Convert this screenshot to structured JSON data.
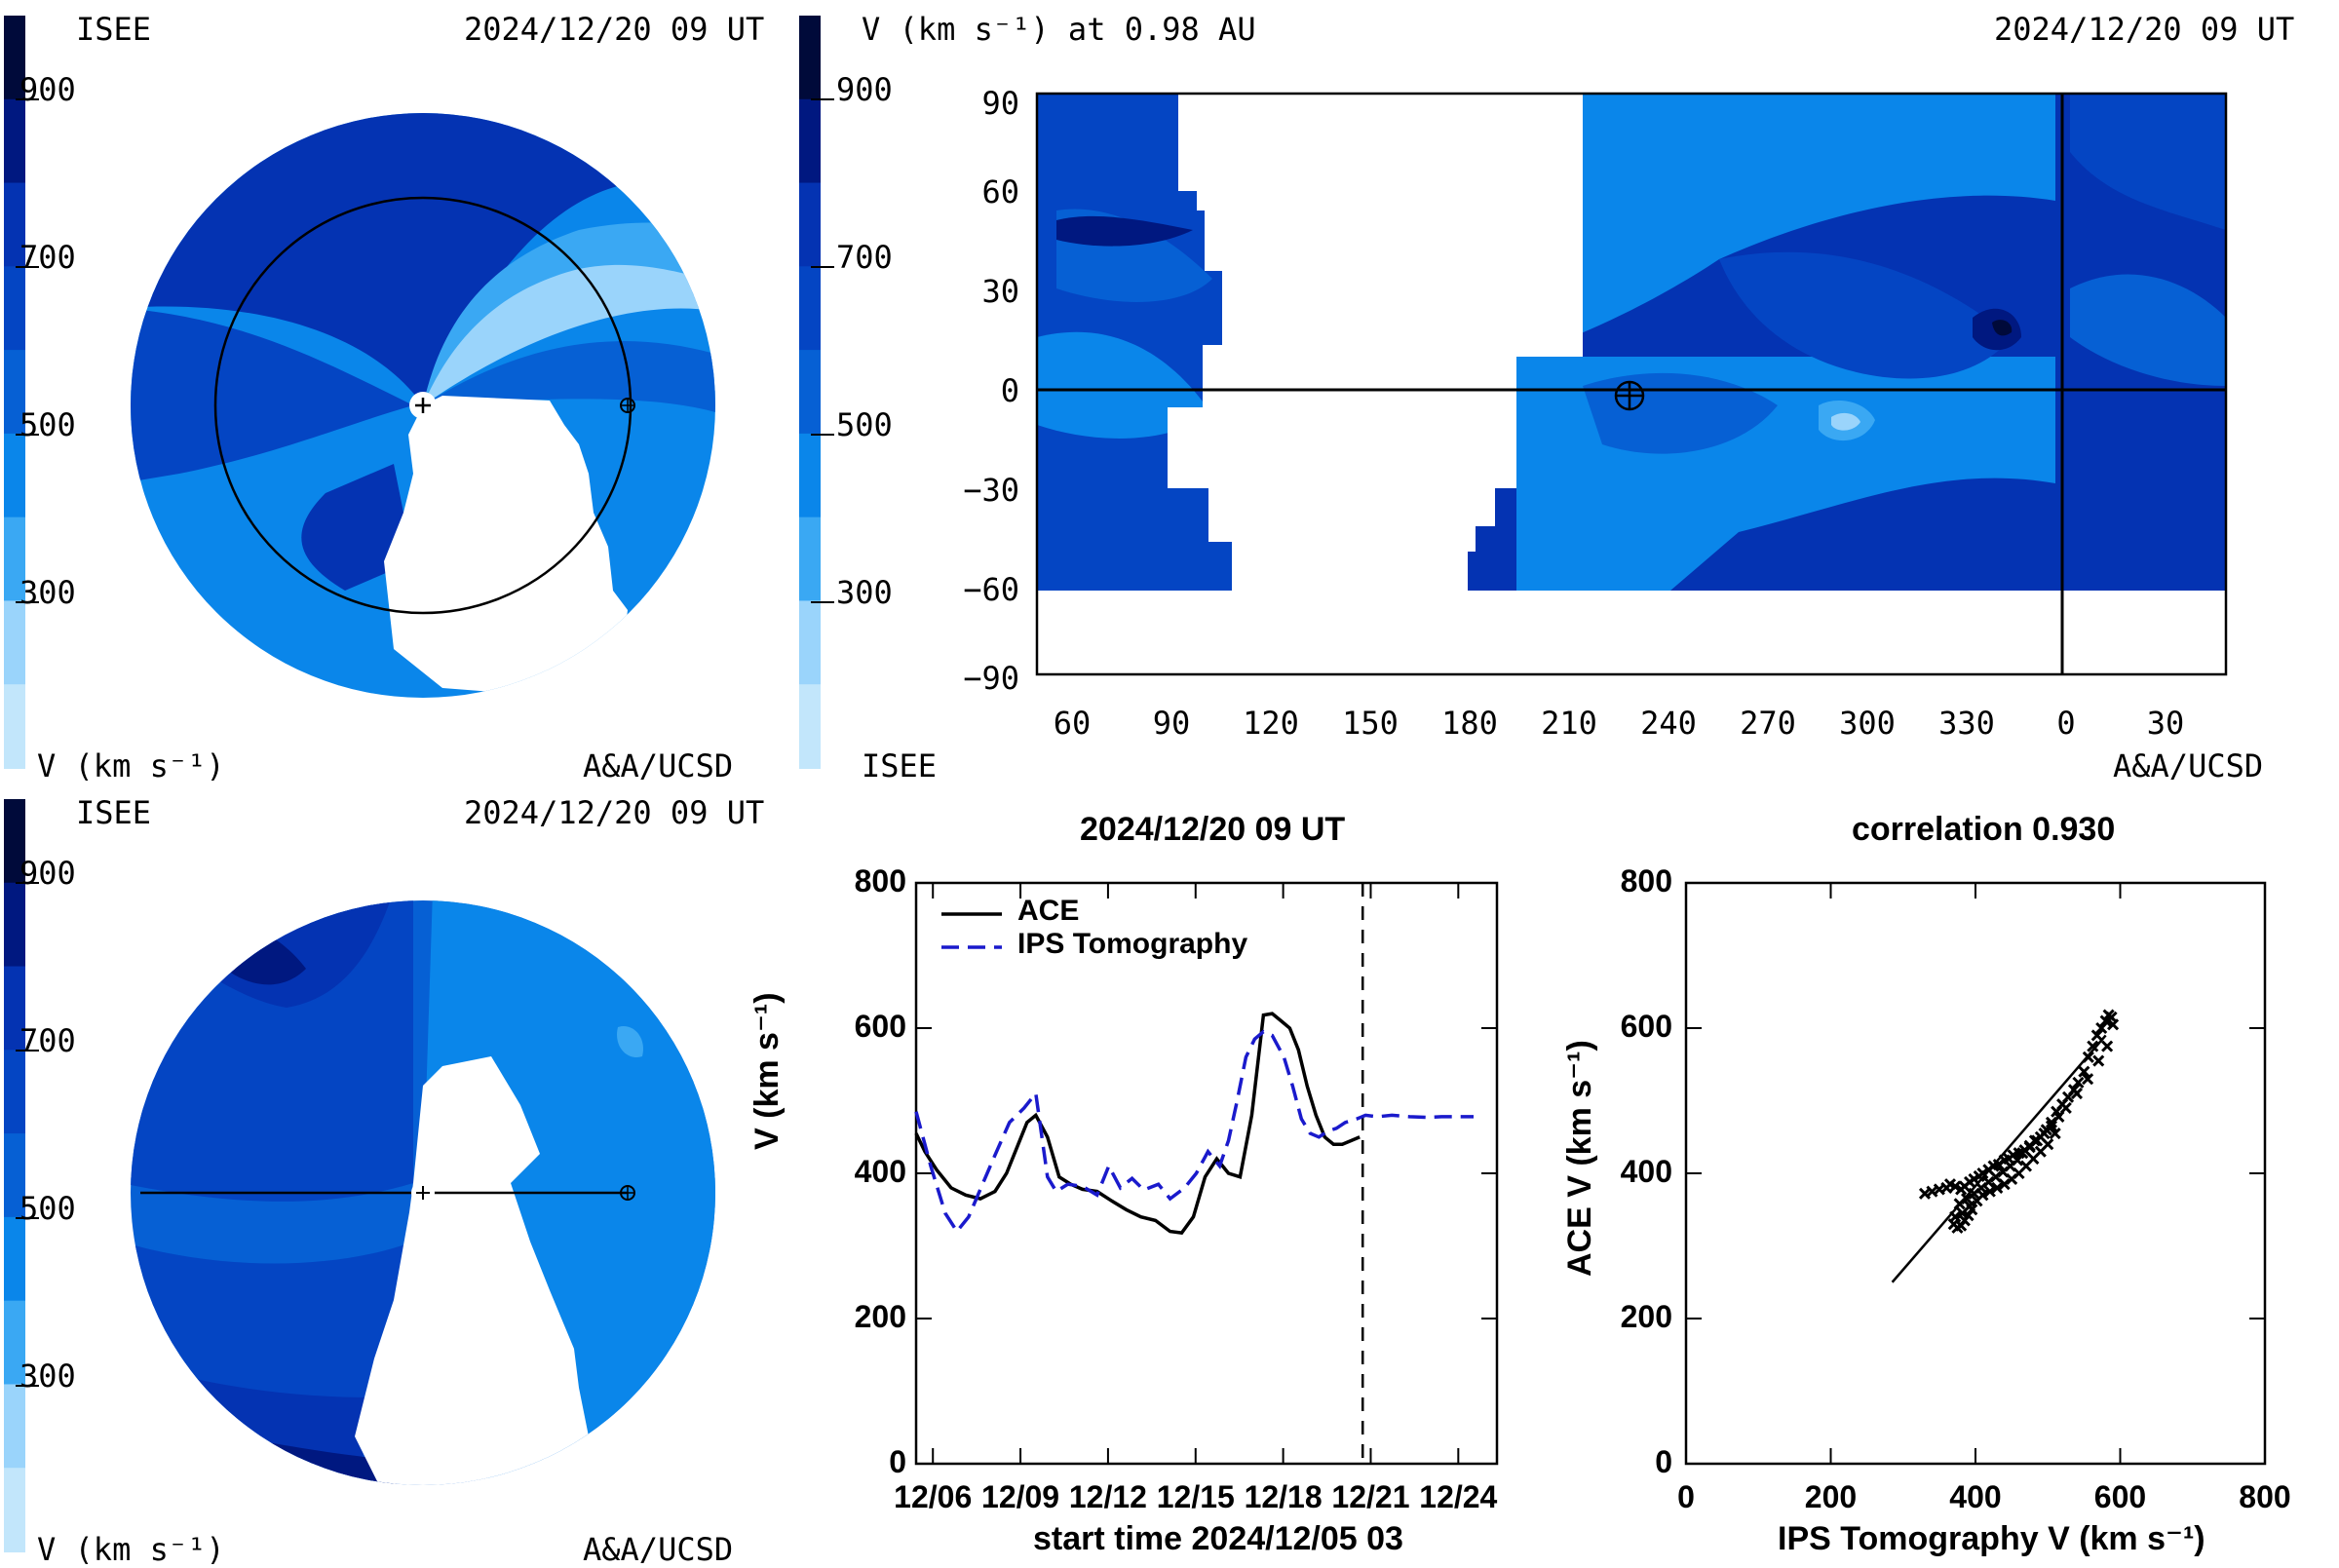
{
  "colors": {
    "v100": "#c2e6fb",
    "v200": "#9ad4fb",
    "v300": "#3aa8f3",
    "v400": "#0a86ea",
    "v500": "#0660d4",
    "v600": "#0445c3",
    "v700": "#0433b2",
    "v800": "#001880",
    "v900": "#000a3a"
  },
  "colorbar": {
    "ticks": [
      "900",
      "700",
      "500",
      "300"
    ]
  },
  "panel_tl": {
    "left_label": "ISEE",
    "timestamp": "2024/12/20 09 UT",
    "bottom_left": "V (km s⁻¹)",
    "bottom_right": "A&A/UCSD"
  },
  "panel_tr": {
    "title": "V (km s⁻¹) at 0.98 AU",
    "timestamp": "2024/12/20 09 UT",
    "bottom_left": "ISEE",
    "bottom_right": "A&A/UCSD",
    "y_ticks": [
      "90",
      "60",
      "30",
      "0",
      "−30",
      "−60",
      "−90"
    ],
    "x_ticks": [
      "60",
      "90",
      "120",
      "150",
      "180",
      "210",
      "240",
      "270",
      "300",
      "330",
      "0",
      "30"
    ]
  },
  "panel_bl": {
    "left_label": "ISEE",
    "timestamp": "2024/12/20 09 UT",
    "bottom_left": "V (km s⁻¹)",
    "bottom_right": "A&A/UCSD"
  },
  "timeseries": {
    "title": "2024/12/20 09 UT",
    "xlabel": "start time 2024/12/05 03",
    "ylabel": "V (km s⁻¹)",
    "y_ticks": [
      "800",
      "600",
      "400",
      "200",
      "0"
    ],
    "x_ticks": [
      "12/06",
      "12/09",
      "12/12",
      "12/15",
      "12/18",
      "12/21",
      "12/24"
    ],
    "legend": [
      "ACE",
      "IPS Tomography"
    ]
  },
  "scatter": {
    "title": "correlation 0.930",
    "xlabel": "IPS Tomography V (km s⁻¹)",
    "ylabel": "ACE V (km s⁻¹)",
    "y_ticks": [
      "800",
      "600",
      "400",
      "200",
      "0"
    ],
    "x_ticks": [
      "0",
      "200",
      "400",
      "600",
      "800"
    ]
  },
  "chart_data": [
    {
      "type": "line",
      "title": "2024/12/20 09 UT",
      "xlabel": "start time 2024/12/05 03",
      "ylabel": "V (km s⁻¹)",
      "x_unit": "days since start",
      "xlim": [
        0.3,
        20.2
      ],
      "ylim": [
        0,
        800
      ],
      "marker_day": 15.6,
      "legend_position": "top-left",
      "series": [
        {
          "name": "ACE",
          "style": "solid",
          "color": "#000000",
          "x": [
            0.3,
            0.6,
            1.0,
            1.5,
            2.0,
            2.5,
            3.0,
            3.4,
            3.8,
            4.1,
            4.4,
            4.8,
            5.2,
            5.6,
            6.0,
            6.5,
            7.0,
            7.5,
            8.0,
            8.5,
            9.0,
            9.4,
            9.8,
            10.2,
            10.6,
            11.0,
            11.4,
            11.8,
            12.2,
            12.5,
            12.8,
            13.1,
            13.4,
            13.7,
            14.0,
            14.3,
            14.6,
            14.9,
            15.2,
            15.5
          ],
          "y": [
            455,
            430,
            405,
            380,
            370,
            365,
            375,
            400,
            440,
            470,
            480,
            450,
            395,
            385,
            378,
            375,
            362,
            350,
            340,
            335,
            320,
            318,
            340,
            395,
            420,
            400,
            395,
            480,
            618,
            620,
            610,
            600,
            570,
            520,
            480,
            450,
            440,
            440,
            445,
            450
          ]
        },
        {
          "name": "IPS Tomography",
          "style": "dashed",
          "color": "#1a1acc",
          "x": [
            0.3,
            0.8,
            1.3,
            1.7,
            2.1,
            2.5,
            3.0,
            3.5,
            4.0,
            4.4,
            4.8,
            5.1,
            5.5,
            6.0,
            6.5,
            6.9,
            7.3,
            7.7,
            8.1,
            8.6,
            9.0,
            9.5,
            9.9,
            10.3,
            10.7,
            11.0,
            11.3,
            11.6,
            11.9,
            12.2,
            12.5,
            12.9,
            13.2,
            13.5,
            13.8,
            14.1,
            14.4,
            14.7,
            15.0,
            15.4,
            15.7,
            16.1,
            16.6,
            17.2,
            17.8,
            18.3,
            18.8,
            19.4
          ],
          "y": [
            485,
            410,
            345,
            320,
            340,
            378,
            425,
            470,
            490,
            510,
            395,
            375,
            385,
            382,
            370,
            410,
            380,
            393,
            377,
            385,
            365,
            380,
            400,
            430,
            410,
            445,
            500,
            560,
            585,
            595,
            590,
            560,
            520,
            475,
            455,
            450,
            458,
            462,
            470,
            475,
            480,
            478,
            480,
            478,
            477,
            478,
            478,
            478
          ]
        }
      ]
    },
    {
      "type": "scatter",
      "title": "correlation 0.930",
      "xlabel": "IPS Tomography V (km s⁻¹)",
      "ylabel": "ACE V (km s⁻¹)",
      "xlim": [
        0,
        800
      ],
      "ylim": [
        0,
        800
      ],
      "fit_line": [
        [
          285,
          250
        ],
        [
          580,
          590
        ]
      ],
      "series": [
        {
          "name": "",
          "x": [
            330,
            340,
            350,
            360,
            365,
            372,
            380,
            385,
            392,
            398,
            405,
            410,
            418,
            425,
            432,
            440,
            446,
            452,
            460,
            468,
            475,
            482,
            490,
            498,
            505,
            512,
            520,
            528,
            536,
            542,
            550,
            556,
            562,
            568,
            574,
            580,
            584,
            588,
            370,
            375,
            380,
            385,
            390,
            395,
            372,
            382,
            392,
            402,
            410,
            420,
            430,
            440,
            450,
            460,
            470,
            480,
            490,
            500,
            510,
            378,
            388,
            398,
            408,
            418,
            428,
            438,
            448,
            458,
            465,
            475,
            485,
            495,
            505,
            515,
            525,
            540,
            555,
            570,
            582,
            590
          ],
          "y": [
            372,
            375,
            378,
            380,
            385,
            382,
            378,
            382,
            388,
            392,
            396,
            400,
            405,
            410,
            412,
            418,
            420,
            425,
            428,
            432,
            438,
            445,
            450,
            460,
            470,
            485,
            495,
            505,
            515,
            525,
            540,
            560,
            575,
            590,
            600,
            610,
            618,
            615,
            330,
            325,
            328,
            335,
            342,
            350,
            340,
            345,
            355,
            362,
            370,
            375,
            380,
            385,
            392,
            400,
            410,
            420,
            430,
            440,
            455,
            358,
            365,
            372,
            380,
            388,
            395,
            402,
            410,
            418,
            428,
            436,
            445,
            455,
            465,
            478,
            490,
            510,
            530,
            555,
            575,
            605
          ]
        }
      ]
    }
  ]
}
